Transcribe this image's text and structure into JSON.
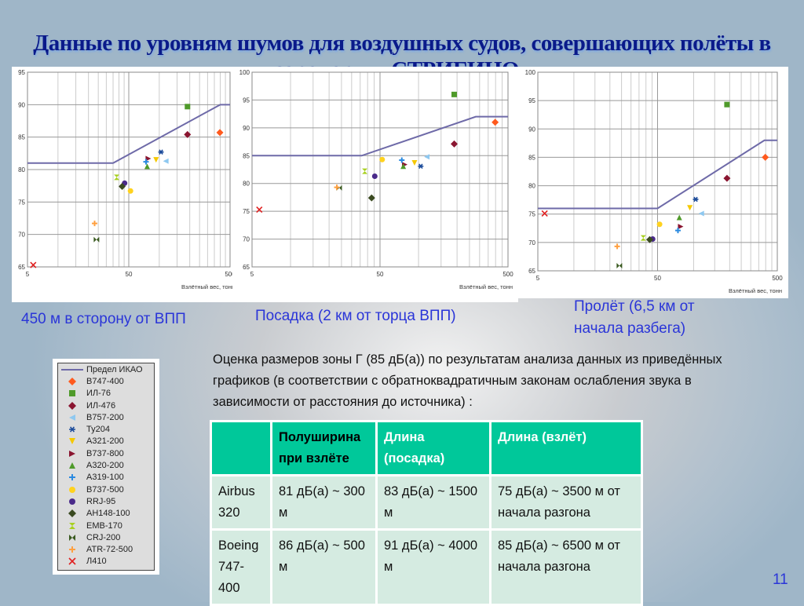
{
  "title": "Данные по уровням шумов для воздушных судов, совершающих полёты в аэропорту «СТРИГИНО»",
  "legend": {
    "limit_label": "Предел ИКАО",
    "items": [
      {
        "name": "B747-400",
        "marker": "diamond",
        "color": "#ff5a1e"
      },
      {
        "name": "ИЛ-76",
        "marker": "square",
        "color": "#4f9a2a"
      },
      {
        "name": "ИЛ-476",
        "marker": "diamond",
        "color": "#8a1530"
      },
      {
        "name": "B757-200",
        "marker": "triangle-left",
        "color": "#8ec8f0"
      },
      {
        "name": "Ту204",
        "marker": "asterisk",
        "color": "#1a4a9a"
      },
      {
        "name": "A321-200",
        "marker": "triangle-down",
        "color": "#f5c800"
      },
      {
        "name": "B737-800",
        "marker": "triangle-right",
        "color": "#8a1530"
      },
      {
        "name": "A320-200",
        "marker": "triangle-up",
        "color": "#4f9a2a"
      },
      {
        "name": "A319-100",
        "marker": "plus",
        "color": "#2a8ae0"
      },
      {
        "name": "B737-500",
        "marker": "circle",
        "color": "#ffd21e"
      },
      {
        "name": "RRJ-95",
        "marker": "circle",
        "color": "#4a2a8a"
      },
      {
        "name": "АН148-100",
        "marker": "diamond",
        "color": "#3a4a20"
      },
      {
        "name": "EMB-170",
        "marker": "hourglass",
        "color": "#a8d020"
      },
      {
        "name": "CRJ-200",
        "marker": "bowtie",
        "color": "#3a5a20"
      },
      {
        "name": "ATR-72-500",
        "marker": "plus",
        "color": "#ffa040"
      },
      {
        "name": "Л410",
        "marker": "x",
        "color": "#e02020"
      }
    ]
  },
  "limit_color": "#6e6aa8",
  "chart_data": [
    {
      "type": "scatter",
      "caption": "450 м в сторону от ВПП",
      "xlabel": "Взлётный вес, тонн",
      "ylabel": "",
      "xscale": "log",
      "xlim": [
        5,
        500
      ],
      "ylim": [
        65,
        95
      ],
      "xticks": [
        5,
        50,
        500
      ],
      "yticks": [
        65,
        70,
        75,
        80,
        85,
        90,
        95
      ],
      "grid": true,
      "limit": [
        [
          5,
          81
        ],
        [
          35,
          81
        ],
        [
          400,
          90
        ],
        [
          500,
          90
        ]
      ],
      "points": [
        {
          "name": "B747-400",
          "x": 397,
          "y": 85.7
        },
        {
          "name": "ИЛ-76",
          "x": 190,
          "y": 89.7
        },
        {
          "name": "ИЛ-476",
          "x": 190,
          "y": 85.4
        },
        {
          "name": "B757-200",
          "x": 116,
          "y": 81.3
        },
        {
          "name": "Ту204",
          "x": 104,
          "y": 82.7
        },
        {
          "name": "A321-200",
          "x": 93,
          "y": 81.5
        },
        {
          "name": "B737-800",
          "x": 78,
          "y": 81.7
        },
        {
          "name": "A320-200",
          "x": 76,
          "y": 80.5
        },
        {
          "name": "A319-100",
          "x": 74,
          "y": 81.2
        },
        {
          "name": "B737-500",
          "x": 52,
          "y": 76.7
        },
        {
          "name": "RRJ-95",
          "x": 45.5,
          "y": 77.9
        },
        {
          "name": "АН148-100",
          "x": 43,
          "y": 77.4
        },
        {
          "name": "EMB-170",
          "x": 38,
          "y": 78.8
        },
        {
          "name": "CRJ-200",
          "x": 24,
          "y": 69.2
        },
        {
          "name": "ATR-72-500",
          "x": 23,
          "y": 71.7
        },
        {
          "name": "Л410",
          "x": 5.7,
          "y": 65.3
        }
      ]
    },
    {
      "type": "scatter",
      "caption": "Посадка (2 км от торца ВПП)",
      "xlabel": "Взлётный вес, тонн",
      "ylabel": "",
      "xscale": "log",
      "xlim": [
        5,
        500
      ],
      "ylim": [
        65,
        100
      ],
      "xticks": [
        5,
        50,
        500
      ],
      "yticks": [
        65,
        70,
        75,
        80,
        85,
        90,
        95,
        100
      ],
      "grid": true,
      "limit": [
        [
          5,
          85
        ],
        [
          36,
          85
        ],
        [
          280,
          92
        ],
        [
          500,
          92
        ]
      ],
      "points": [
        {
          "name": "B747-400",
          "x": 397,
          "y": 91.0
        },
        {
          "name": "ИЛ-76",
          "x": 190,
          "y": 96.0
        },
        {
          "name": "ИЛ-476",
          "x": 190,
          "y": 87.1
        },
        {
          "name": "B757-200",
          "x": 116,
          "y": 84.8
        },
        {
          "name": "Ту204",
          "x": 104,
          "y": 83.1
        },
        {
          "name": "A321-200",
          "x": 93,
          "y": 83.7
        },
        {
          "name": "B737-800",
          "x": 78,
          "y": 83.4
        },
        {
          "name": "A320-200",
          "x": 76,
          "y": 83.1
        },
        {
          "name": "A319-100",
          "x": 74,
          "y": 84.2
        },
        {
          "name": "B737-500",
          "x": 52,
          "y": 84.3
        },
        {
          "name": "RRJ-95",
          "x": 45.5,
          "y": 81.3
        },
        {
          "name": "АН148-100",
          "x": 43,
          "y": 77.4
        },
        {
          "name": "EMB-170",
          "x": 38,
          "y": 82.2
        },
        {
          "name": "CRJ-200",
          "x": 24,
          "y": 79.2
        },
        {
          "name": "ATR-72-500",
          "x": 23,
          "y": 79.3
        },
        {
          "name": "Л410",
          "x": 5.7,
          "y": 75.3
        }
      ]
    },
    {
      "type": "scatter",
      "caption": "Пролёт (6,5 км от начала разбега)",
      "xlabel": "Взлётный вес, тонн",
      "ylabel": "",
      "xscale": "log",
      "xlim": [
        5,
        500
      ],
      "ylim": [
        65,
        100
      ],
      "xticks": [
        5,
        50,
        500
      ],
      "yticks": [
        65,
        70,
        75,
        80,
        85,
        90,
        95,
        100
      ],
      "grid": true,
      "limit": [
        [
          5,
          76
        ],
        [
          50,
          76
        ],
        [
          390,
          88
        ],
        [
          500,
          88
        ]
      ],
      "points": [
        {
          "name": "B747-400",
          "x": 397,
          "y": 85.0
        },
        {
          "name": "ИЛ-76",
          "x": 190,
          "y": 94.3
        },
        {
          "name": "ИЛ-476",
          "x": 190,
          "y": 81.3
        },
        {
          "name": "B757-200",
          "x": 116,
          "y": 75.1
        },
        {
          "name": "Ту204",
          "x": 104,
          "y": 77.6
        },
        {
          "name": "A321-200",
          "x": 93,
          "y": 76.1
        },
        {
          "name": "B737-800",
          "x": 78,
          "y": 72.8
        },
        {
          "name": "A320-200",
          "x": 76,
          "y": 74.4
        },
        {
          "name": "A319-100",
          "x": 74,
          "y": 72.1
        },
        {
          "name": "B737-500",
          "x": 52,
          "y": 73.2
        },
        {
          "name": "RRJ-95",
          "x": 45.5,
          "y": 70.6
        },
        {
          "name": "АН148-100",
          "x": 43,
          "y": 70.5
        },
        {
          "name": "EMB-170",
          "x": 38,
          "y": 70.8
        },
        {
          "name": "CRJ-200",
          "x": 24,
          "y": 65.9
        },
        {
          "name": "ATR-72-500",
          "x": 23,
          "y": 69.3
        },
        {
          "name": "Л410",
          "x": 5.7,
          "y": 75.1
        }
      ]
    }
  ],
  "description": "Оценка размеров зоны Г (85 дБ(а)) по результатам анализа данных из приведённых графиков (в соответствии с обратноквадратичным законам ослабления звука в зависимости от расстояния до источника) :",
  "table": {
    "headers": [
      "",
      "Полуширина при взлёте",
      "Длина (посадка)",
      "Длина (взлёт)"
    ],
    "rows": [
      [
        "Airbus 320",
        "81 дБ(а) ~ 300 м",
        "83 дБ(а) ~ 1500 м",
        "75 дБ(а) ~ 3500 м от начала разгона"
      ],
      [
        "Boeing 747-400",
        "86 дБ(а) ~ 500 м",
        "91 дБ(а) ~ 4000 м",
        "85 дБ(а) ~ 6500 м от начала разгона"
      ]
    ]
  },
  "page_number": "11"
}
